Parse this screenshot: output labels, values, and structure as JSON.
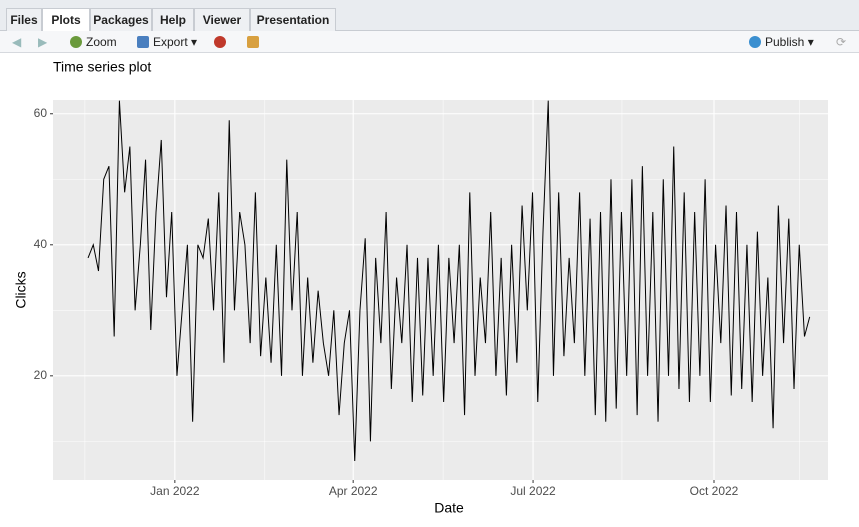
{
  "tabs": [
    "Files",
    "Plots",
    "Packages",
    "Help",
    "Viewer",
    "Presentation"
  ],
  "active_tab": "Plots",
  "toolbar": {
    "zoom": "Zoom",
    "export": "Export",
    "publish": "Publish"
  },
  "chart_data": {
    "type": "line",
    "title": "Time series plot",
    "x_label": "Date",
    "y_label": "Clicks",
    "color": "#000000",
    "values": [
      38,
      40,
      36,
      50,
      52,
      26,
      62,
      48,
      55,
      30,
      40,
      53,
      27,
      45,
      56,
      32,
      45,
      20,
      30,
      40,
      13,
      40,
      38,
      44,
      30,
      48,
      22,
      59,
      30,
      45,
      40,
      25,
      48,
      23,
      35,
      22,
      40,
      20,
      53,
      30,
      45,
      20,
      35,
      22,
      33,
      25,
      20,
      30,
      14,
      25,
      30,
      7,
      30,
      41,
      10,
      38,
      25,
      45,
      18,
      35,
      25,
      40,
      16,
      38,
      17,
      38,
      20,
      40,
      16,
      38,
      25,
      40,
      14,
      48,
      20,
      35,
      25,
      45,
      20,
      38,
      17,
      40,
      22,
      46,
      30,
      48,
      16,
      42,
      62,
      20,
      48,
      23,
      38,
      25,
      48,
      20,
      44,
      14,
      45,
      13,
      50,
      15,
      45,
      20,
      50,
      14,
      52,
      20,
      45,
      13,
      50,
      20,
      55,
      18,
      48,
      16,
      45,
      20,
      50,
      16,
      40,
      25,
      46,
      17,
      45,
      18,
      40,
      16,
      42,
      20,
      35,
      12,
      46,
      25,
      44,
      18,
      40,
      26,
      29
    ],
    "xlim": [
      -6.7,
      141.5
    ],
    "xticks": [
      {
        "value": 16.6,
        "label": "Jan 2022"
      },
      {
        "value": 50.7,
        "label": "Apr 2022"
      },
      {
        "value": 85.1,
        "label": "Jul 2022"
      },
      {
        "value": 119.7,
        "label": "Oct 2022"
      }
    ],
    "minor_xticks": [
      -0.6,
      33.8,
      67.9,
      102.1,
      136.1
    ],
    "ylim": [
      4.1,
      62.1
    ],
    "yticks": [
      20,
      40,
      60
    ],
    "minor_yticks": [
      10,
      30,
      50
    ],
    "grid": true
  }
}
